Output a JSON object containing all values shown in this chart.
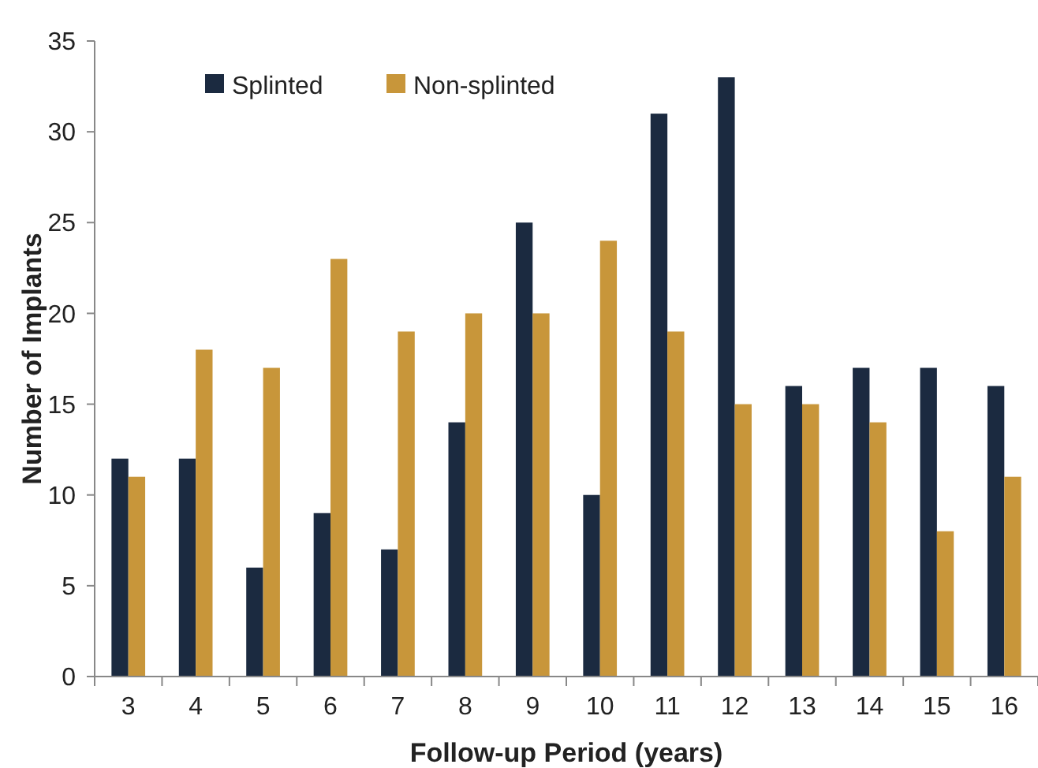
{
  "chart_data": {
    "type": "bar",
    "xlabel": "Follow-up Period (years)",
    "ylabel": "Number of Implants",
    "categories": [
      "3",
      "4",
      "5",
      "6",
      "7",
      "8",
      "9",
      "10",
      "11",
      "12",
      "13",
      "14",
      "15",
      "16"
    ],
    "series": [
      {
        "name": "Splinted",
        "color": "#1b2a40",
        "values": [
          12,
          12,
          6,
          9,
          7,
          14,
          25,
          10,
          31,
          33,
          16,
          17,
          17,
          16
        ]
      },
      {
        "name": "Non-splinted",
        "color": "#c8963a",
        "values": [
          11,
          18,
          17,
          23,
          19,
          20,
          20,
          24,
          19,
          15,
          15,
          14,
          8,
          11
        ]
      }
    ],
    "ylim": [
      0,
      35
    ],
    "yticks": [
      0,
      5,
      10,
      15,
      20,
      25,
      30,
      35
    ],
    "grid": false,
    "legend": "top left"
  }
}
